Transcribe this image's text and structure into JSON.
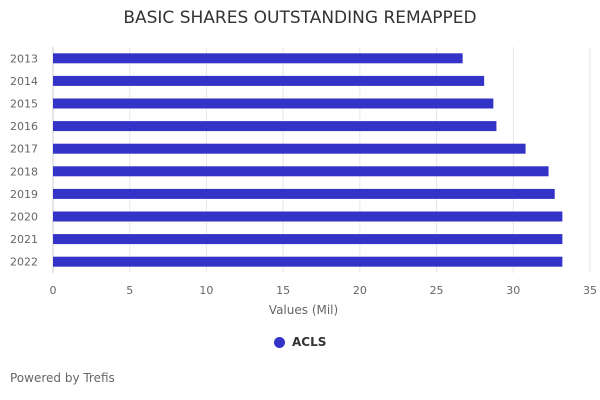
{
  "chart_data": {
    "type": "bar",
    "orientation": "horizontal",
    "title": "BASIC SHARES OUTSTANDING REMAPPED",
    "xlabel": "Values (Mil)",
    "ylabel": "",
    "xlim": [
      0,
      35
    ],
    "xticks": [
      0,
      5,
      10,
      15,
      20,
      25,
      30,
      35
    ],
    "grid": true,
    "legend_position": "bottom",
    "categories": [
      "2013",
      "2014",
      "2015",
      "2016",
      "2017",
      "2018",
      "2019",
      "2020",
      "2021",
      "2022"
    ],
    "series": [
      {
        "name": "ACLS",
        "color": "#3333c7",
        "values": [
          26.7,
          28.1,
          28.7,
          28.9,
          30.8,
          32.3,
          32.7,
          33.2,
          33.2,
          33.2
        ]
      }
    ]
  },
  "footer": {
    "credit": "Powered by Trefis"
  }
}
